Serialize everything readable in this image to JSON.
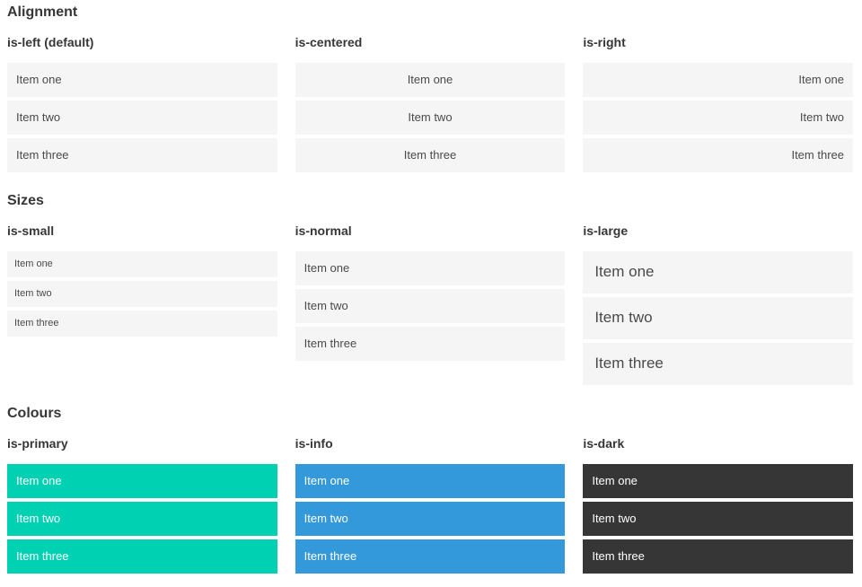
{
  "sections": [
    {
      "title": "Alignment",
      "columns": [
        {
          "label": "is-left (default)",
          "items": [
            "Item one",
            "Item two",
            "Item three"
          ]
        },
        {
          "label": "is-centered",
          "items": [
            "Item one",
            "Item two",
            "Item three"
          ]
        },
        {
          "label": "is-right",
          "items": [
            "Item one",
            "Item two",
            "Item three"
          ]
        }
      ]
    },
    {
      "title": "Sizes",
      "columns": [
        {
          "label": "is-small",
          "items": [
            "Item one",
            "Item two",
            "Item three"
          ]
        },
        {
          "label": "is-normal",
          "items": [
            "Item one",
            "Item two",
            "Item three"
          ]
        },
        {
          "label": "is-large",
          "items": [
            "Item one",
            "Item two",
            "Item three"
          ]
        }
      ]
    },
    {
      "title": "Colours",
      "columns": [
        {
          "label": "is-primary",
          "items": [
            "Item one",
            "Item two",
            "Item three"
          ]
        },
        {
          "label": "is-info",
          "items": [
            "Item one",
            "Item two",
            "Item three"
          ]
        },
        {
          "label": "is-dark",
          "items": [
            "Item one",
            "Item two",
            "Item three"
          ]
        }
      ]
    }
  ],
  "colors": {
    "page_bg": "#ffffff",
    "item_bg": "#f5f5f5",
    "item_text": "#4a4a4a",
    "heading_text": "#363636",
    "primary": "#00d1b2",
    "info": "#3499db",
    "dark": "#363636",
    "colored_text": "#ffffff"
  }
}
